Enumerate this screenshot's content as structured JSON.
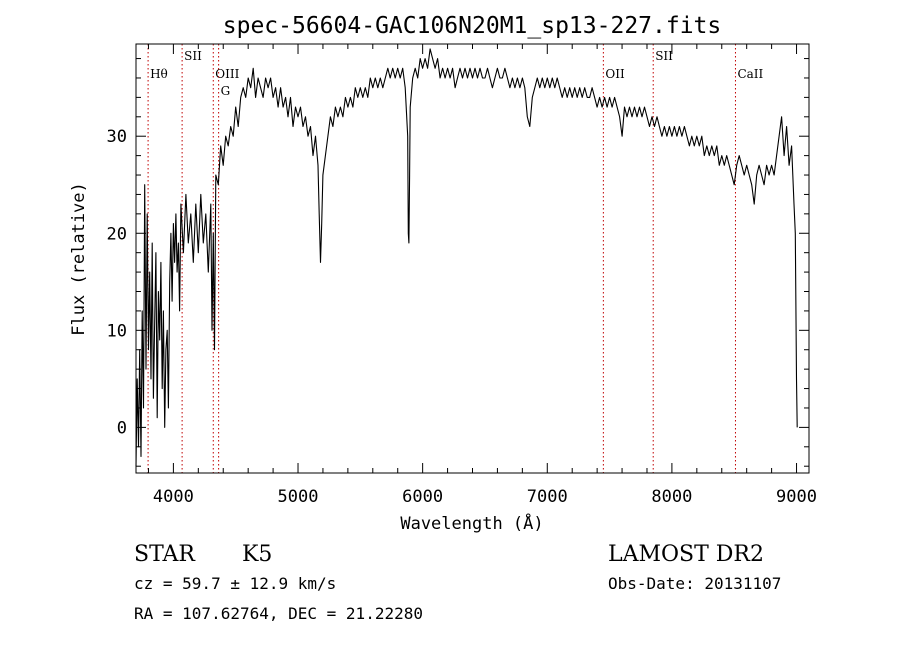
{
  "chart_data": {
    "type": "line",
    "title": "spec-56604-GAC106N20M1_sp13-227.fits",
    "xlabel": "Wavelength (Å)",
    "ylabel": "Flux (relative)",
    "xlim": [
      3700,
      9100
    ],
    "ylim": [
      -4.7,
      39.5
    ],
    "xticks": [
      4000,
      5000,
      6000,
      7000,
      8000,
      9000
    ],
    "yticks": [
      0,
      10,
      20,
      30
    ],
    "grid": false,
    "series": [
      {
        "color": "#000000",
        "points": [
          [
            3700,
            -4
          ],
          [
            3710,
            5
          ],
          [
            3720,
            -2
          ],
          [
            3730,
            8
          ],
          [
            3740,
            -3
          ],
          [
            3750,
            12
          ],
          [
            3760,
            2
          ],
          [
            3770,
            25
          ],
          [
            3780,
            6
          ],
          [
            3790,
            22
          ],
          [
            3800,
            8
          ],
          [
            3810,
            16
          ],
          [
            3820,
            5
          ],
          [
            3830,
            19
          ],
          [
            3840,
            3
          ],
          [
            3850,
            11
          ],
          [
            3860,
            18
          ],
          [
            3870,
            1
          ],
          [
            3880,
            14
          ],
          [
            3890,
            9
          ],
          [
            3900,
            17
          ],
          [
            3910,
            4
          ],
          [
            3920,
            12
          ],
          [
            3930,
            0
          ],
          [
            3940,
            8
          ],
          [
            3950,
            10
          ],
          [
            3960,
            2
          ],
          [
            3970,
            15
          ],
          [
            3980,
            20
          ],
          [
            3990,
            13
          ],
          [
            4000,
            21
          ],
          [
            4010,
            17
          ],
          [
            4020,
            22
          ],
          [
            4030,
            16
          ],
          [
            4040,
            19
          ],
          [
            4050,
            12
          ],
          [
            4060,
            23
          ],
          [
            4080,
            18
          ],
          [
            4100,
            24
          ],
          [
            4120,
            19
          ],
          [
            4140,
            22
          ],
          [
            4160,
            17
          ],
          [
            4180,
            23
          ],
          [
            4200,
            18
          ],
          [
            4220,
            24
          ],
          [
            4240,
            19
          ],
          [
            4260,
            22
          ],
          [
            4280,
            16
          ],
          [
            4300,
            23
          ],
          [
            4310,
            10
          ],
          [
            4320,
            20
          ],
          [
            4330,
            8
          ],
          [
            4340,
            26
          ],
          [
            4360,
            25
          ],
          [
            4380,
            29
          ],
          [
            4400,
            27
          ],
          [
            4420,
            30
          ],
          [
            4440,
            29
          ],
          [
            4460,
            31
          ],
          [
            4480,
            30
          ],
          [
            4500,
            33
          ],
          [
            4520,
            31
          ],
          [
            4540,
            34
          ],
          [
            4560,
            35
          ],
          [
            4580,
            34
          ],
          [
            4600,
            36
          ],
          [
            4620,
            35
          ],
          [
            4640,
            37
          ],
          [
            4660,
            34
          ],
          [
            4680,
            36
          ],
          [
            4700,
            35
          ],
          [
            4720,
            34
          ],
          [
            4740,
            36
          ],
          [
            4760,
            35
          ],
          [
            4780,
            36
          ],
          [
            4800,
            34
          ],
          [
            4820,
            35
          ],
          [
            4840,
            33
          ],
          [
            4860,
            35
          ],
          [
            4880,
            33
          ],
          [
            4900,
            34
          ],
          [
            4920,
            32
          ],
          [
            4940,
            34
          ],
          [
            4960,
            31
          ],
          [
            4980,
            33
          ],
          [
            5000,
            32
          ],
          [
            5020,
            33
          ],
          [
            5040,
            31
          ],
          [
            5060,
            32
          ],
          [
            5080,
            30
          ],
          [
            5100,
            31
          ],
          [
            5120,
            28
          ],
          [
            5140,
            30
          ],
          [
            5160,
            27
          ],
          [
            5170,
            22
          ],
          [
            5180,
            17
          ],
          [
            5190,
            21
          ],
          [
            5200,
            26
          ],
          [
            5220,
            28
          ],
          [
            5240,
            30
          ],
          [
            5260,
            32
          ],
          [
            5280,
            31
          ],
          [
            5300,
            33
          ],
          [
            5320,
            32
          ],
          [
            5340,
            33
          ],
          [
            5360,
            32
          ],
          [
            5380,
            34
          ],
          [
            5400,
            33
          ],
          [
            5420,
            34
          ],
          [
            5440,
            33
          ],
          [
            5460,
            35
          ],
          [
            5480,
            34
          ],
          [
            5500,
            35
          ],
          [
            5520,
            34
          ],
          [
            5540,
            35
          ],
          [
            5560,
            34
          ],
          [
            5580,
            36
          ],
          [
            5600,
            35
          ],
          [
            5620,
            36
          ],
          [
            5640,
            35
          ],
          [
            5660,
            36
          ],
          [
            5680,
            35
          ],
          [
            5700,
            36
          ],
          [
            5720,
            37
          ],
          [
            5740,
            36
          ],
          [
            5760,
            37
          ],
          [
            5780,
            36
          ],
          [
            5800,
            37
          ],
          [
            5820,
            36
          ],
          [
            5840,
            37
          ],
          [
            5860,
            35
          ],
          [
            5880,
            30
          ],
          [
            5885,
            20
          ],
          [
            5890,
            19
          ],
          [
            5895,
            26
          ],
          [
            5900,
            33
          ],
          [
            5920,
            36
          ],
          [
            5940,
            37
          ],
          [
            5960,
            36
          ],
          [
            5980,
            38
          ],
          [
            6000,
            37
          ],
          [
            6020,
            38
          ],
          [
            6040,
            37
          ],
          [
            6060,
            39
          ],
          [
            6080,
            38
          ],
          [
            6100,
            37
          ],
          [
            6120,
            38
          ],
          [
            6140,
            36
          ],
          [
            6160,
            37
          ],
          [
            6180,
            36
          ],
          [
            6200,
            37
          ],
          [
            6220,
            36
          ],
          [
            6240,
            37
          ],
          [
            6260,
            35
          ],
          [
            6280,
            36
          ],
          [
            6300,
            37
          ],
          [
            6320,
            36
          ],
          [
            6340,
            37
          ],
          [
            6360,
            36
          ],
          [
            6380,
            37
          ],
          [
            6400,
            36
          ],
          [
            6420,
            37
          ],
          [
            6440,
            36
          ],
          [
            6460,
            37
          ],
          [
            6480,
            36
          ],
          [
            6500,
            36
          ],
          [
            6520,
            37
          ],
          [
            6540,
            36
          ],
          [
            6560,
            35
          ],
          [
            6580,
            36
          ],
          [
            6600,
            37
          ],
          [
            6620,
            36
          ],
          [
            6640,
            36
          ],
          [
            6660,
            37
          ],
          [
            6680,
            36
          ],
          [
            6700,
            35
          ],
          [
            6720,
            36
          ],
          [
            6740,
            35
          ],
          [
            6760,
            36
          ],
          [
            6780,
            35
          ],
          [
            6800,
            36
          ],
          [
            6820,
            35
          ],
          [
            6840,
            32
          ],
          [
            6860,
            31
          ],
          [
            6880,
            34
          ],
          [
            6900,
            35
          ],
          [
            6920,
            36
          ],
          [
            6940,
            35
          ],
          [
            6960,
            36
          ],
          [
            6980,
            35
          ],
          [
            7000,
            36
          ],
          [
            7020,
            35
          ],
          [
            7040,
            36
          ],
          [
            7060,
            35
          ],
          [
            7080,
            36
          ],
          [
            7100,
            35
          ],
          [
            7120,
            34
          ],
          [
            7140,
            35
          ],
          [
            7160,
            34
          ],
          [
            7180,
            35
          ],
          [
            7200,
            34
          ],
          [
            7220,
            35
          ],
          [
            7240,
            34
          ],
          [
            7260,
            35
          ],
          [
            7280,
            34
          ],
          [
            7300,
            35
          ],
          [
            7320,
            34
          ],
          [
            7340,
            34
          ],
          [
            7360,
            35
          ],
          [
            7380,
            34
          ],
          [
            7400,
            33
          ],
          [
            7420,
            34
          ],
          [
            7440,
            33
          ],
          [
            7460,
            34
          ],
          [
            7480,
            33
          ],
          [
            7500,
            34
          ],
          [
            7520,
            33
          ],
          [
            7540,
            34
          ],
          [
            7560,
            33
          ],
          [
            7580,
            32
          ],
          [
            7600,
            30
          ],
          [
            7620,
            33
          ],
          [
            7640,
            32
          ],
          [
            7660,
            33
          ],
          [
            7680,
            32
          ],
          [
            7700,
            33
          ],
          [
            7720,
            32
          ],
          [
            7740,
            33
          ],
          [
            7760,
            32
          ],
          [
            7780,
            33
          ],
          [
            7800,
            32
          ],
          [
            7820,
            31
          ],
          [
            7840,
            32
          ],
          [
            7860,
            31
          ],
          [
            7880,
            32
          ],
          [
            7900,
            31
          ],
          [
            7920,
            30
          ],
          [
            7940,
            31
          ],
          [
            7960,
            30
          ],
          [
            7980,
            31
          ],
          [
            8000,
            30
          ],
          [
            8020,
            31
          ],
          [
            8040,
            30
          ],
          [
            8060,
            31
          ],
          [
            8080,
            30
          ],
          [
            8100,
            31
          ],
          [
            8120,
            30
          ],
          [
            8140,
            29
          ],
          [
            8160,
            30
          ],
          [
            8180,
            29
          ],
          [
            8200,
            30
          ],
          [
            8220,
            29
          ],
          [
            8240,
            30
          ],
          [
            8260,
            28
          ],
          [
            8280,
            29
          ],
          [
            8300,
            28
          ],
          [
            8320,
            29
          ],
          [
            8340,
            28
          ],
          [
            8360,
            29
          ],
          [
            8380,
            27
          ],
          [
            8400,
            28
          ],
          [
            8420,
            27
          ],
          [
            8440,
            28
          ],
          [
            8460,
            27
          ],
          [
            8480,
            26
          ],
          [
            8500,
            25
          ],
          [
            8520,
            27
          ],
          [
            8540,
            28
          ],
          [
            8560,
            27
          ],
          [
            8580,
            26
          ],
          [
            8600,
            27
          ],
          [
            8620,
            26
          ],
          [
            8640,
            25
          ],
          [
            8660,
            23
          ],
          [
            8680,
            26
          ],
          [
            8700,
            27
          ],
          [
            8720,
            26
          ],
          [
            8740,
            25
          ],
          [
            8760,
            27
          ],
          [
            8780,
            26
          ],
          [
            8800,
            27
          ],
          [
            8820,
            26
          ],
          [
            8840,
            28
          ],
          [
            8860,
            30
          ],
          [
            8880,
            32
          ],
          [
            8900,
            28
          ],
          [
            8920,
            31
          ],
          [
            8940,
            27
          ],
          [
            8960,
            29
          ],
          [
            8970,
            26
          ],
          [
            8980,
            23
          ],
          [
            8990,
            20
          ],
          [
            9000,
            5
          ],
          [
            9005,
            0
          ]
        ]
      }
    ],
    "lines": [
      {
        "label": "Hθ",
        "x": 3797
      },
      {
        "label": "SII",
        "x": 4070
      },
      {
        "label": "OIII",
        "x": 4320
      },
      {
        "label": "G",
        "x": 4363
      },
      {
        "label": "OII",
        "x": 7450
      },
      {
        "label": "SII",
        "x": 7850
      },
      {
        "label": "CaII",
        "x": 8510
      }
    ]
  },
  "info": {
    "class": "STAR",
    "subclass": "K5",
    "cz": "cz = 59.7 ± 12.9 km/s",
    "radec": "RA = 107.62764, DEC =  21.22280",
    "survey": "LAMOST DR2",
    "obs_date": "Obs-Date: 20131107"
  }
}
